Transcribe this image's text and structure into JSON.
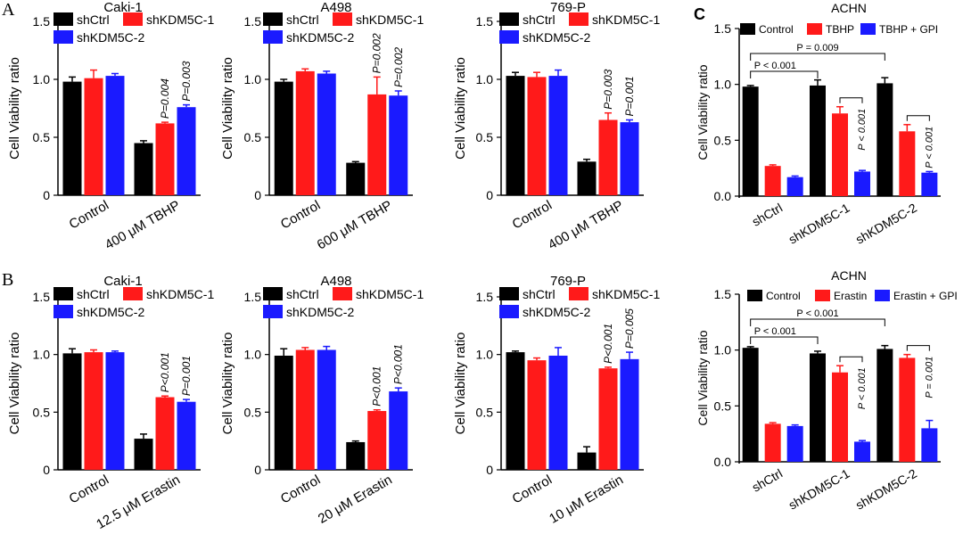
{
  "panel_labels": {
    "a": "A",
    "b": "B",
    "c": "C"
  },
  "colors": {
    "shCtrl": "#000000",
    "shKDM5C-1": "#ff1a1a",
    "shKDM5C-2": "#1a1aff"
  },
  "chart_data": [
    {
      "type": "bar",
      "title": "Caki-1",
      "ylabel": "Cell Viability ratio",
      "ylim": [
        0,
        1.5
      ],
      "yticks": [
        "0",
        "0.5",
        "1.0",
        "1.5"
      ],
      "categories": [
        "Control",
        "400 μM TBHP"
      ],
      "series": [
        {
          "name": "shCtrl",
          "values": [
            0.98,
            0.45
          ],
          "errors": [
            0.04,
            0.02
          ]
        },
        {
          "name": "shKDM5C-1",
          "values": [
            1.01,
            0.62
          ],
          "errors": [
            0.07,
            0.01
          ]
        },
        {
          "name": "shKDM5C-2",
          "values": [
            1.03,
            0.76
          ],
          "errors": [
            0.02,
            0.02
          ]
        }
      ],
      "pvalues": [
        {
          "text": "P=0.004",
          "category": 1,
          "series": 1
        },
        {
          "text": "P=0.003",
          "category": 1,
          "series": 2
        }
      ]
    },
    {
      "type": "bar",
      "title": "A498",
      "ylabel": "Cell Viability ratio",
      "ylim": [
        0,
        1.5
      ],
      "yticks": [
        "0",
        "0.5",
        "1.0",
        "1.5"
      ],
      "categories": [
        "Control",
        "600 μM TBHP"
      ],
      "series": [
        {
          "name": "shCtrl",
          "values": [
            0.98,
            0.28
          ],
          "errors": [
            0.02,
            0.01
          ]
        },
        {
          "name": "shKDM5C-1",
          "values": [
            1.07,
            0.87
          ],
          "errors": [
            0.02,
            0.15
          ]
        },
        {
          "name": "shKDM5C-2",
          "values": [
            1.05,
            0.86
          ],
          "errors": [
            0.02,
            0.04
          ]
        }
      ],
      "pvalues": [
        {
          "text": "P=0.002",
          "category": 1,
          "series": 1
        },
        {
          "text": "P=0.002",
          "category": 1,
          "series": 2
        }
      ]
    },
    {
      "type": "bar",
      "title": "769-P",
      "ylabel": "Cell Viability ratio",
      "ylim": [
        0,
        1.5
      ],
      "yticks": [
        "0",
        "0.5",
        "1.0",
        "1.5"
      ],
      "categories": [
        "Control",
        "400 μM TBHP"
      ],
      "series": [
        {
          "name": "shCtrl",
          "values": [
            1.03,
            0.29
          ],
          "errors": [
            0.03,
            0.02
          ]
        },
        {
          "name": "shKDM5C-1",
          "values": [
            1.02,
            0.65
          ],
          "errors": [
            0.04,
            0.06
          ]
        },
        {
          "name": "shKDM5C-2",
          "values": [
            1.03,
            0.63
          ],
          "errors": [
            0.05,
            0.02
          ]
        }
      ],
      "pvalues": [
        {
          "text": "P=0.003",
          "category": 1,
          "series": 1
        },
        {
          "text": "P=0.001",
          "category": 1,
          "series": 2
        }
      ]
    },
    {
      "type": "bar",
      "title": "Caki-1",
      "ylabel": "Cell Viability ratio",
      "ylim": [
        0,
        1.5
      ],
      "yticks": [
        "0",
        "0.5",
        "1.0",
        "1.5"
      ],
      "categories": [
        "Control",
        "12.5 μM Erastin"
      ],
      "series": [
        {
          "name": "shCtrl",
          "values": [
            1.01,
            0.27
          ],
          "errors": [
            0.04,
            0.04
          ]
        },
        {
          "name": "shKDM5C-1",
          "values": [
            1.02,
            0.63
          ],
          "errors": [
            0.02,
            0.01
          ]
        },
        {
          "name": "shKDM5C-2",
          "values": [
            1.02,
            0.59
          ],
          "errors": [
            0.01,
            0.02
          ]
        }
      ],
      "pvalues": [
        {
          "text": "P<0.001",
          "category": 1,
          "series": 1
        },
        {
          "text": "P=0.001",
          "category": 1,
          "series": 2
        }
      ]
    },
    {
      "type": "bar",
      "title": "A498",
      "ylabel": "Cell Viability ratio",
      "ylim": [
        0,
        1.5
      ],
      "yticks": [
        "0",
        "0.5",
        "1.0",
        "1.5"
      ],
      "categories": [
        "Control",
        "20 μM Erastin"
      ],
      "series": [
        {
          "name": "shCtrl",
          "values": [
            0.99,
            0.24
          ],
          "errors": [
            0.06,
            0.01
          ]
        },
        {
          "name": "shKDM5C-1",
          "values": [
            1.04,
            0.51
          ],
          "errors": [
            0.02,
            0.01
          ]
        },
        {
          "name": "shKDM5C-2",
          "values": [
            1.04,
            0.68
          ],
          "errors": [
            0.03,
            0.03
          ]
        }
      ],
      "pvalues": [
        {
          "text": "P<0.001",
          "category": 1,
          "series": 1
        },
        {
          "text": "P<0.001",
          "category": 1,
          "series": 2
        }
      ]
    },
    {
      "type": "bar",
      "title": "769-P",
      "ylabel": "Cell Viability ratio",
      "ylim": [
        0,
        1.5
      ],
      "yticks": [
        "0",
        "0.5",
        "1.0",
        "1.5"
      ],
      "categories": [
        "Control",
        "10 μM Erastin"
      ],
      "series": [
        {
          "name": "shCtrl",
          "values": [
            1.02,
            0.15
          ],
          "errors": [
            0.01,
            0.05
          ]
        },
        {
          "name": "shKDM5C-1",
          "values": [
            0.95,
            0.88
          ],
          "errors": [
            0.02,
            0.01
          ]
        },
        {
          "name": "shKDM5C-2",
          "values": [
            0.99,
            0.96
          ],
          "errors": [
            0.07,
            0.06
          ]
        }
      ],
      "pvalues": [
        {
          "text": "P<0.001",
          "category": 1,
          "series": 1
        },
        {
          "text": "P=0.005",
          "category": 1,
          "series": 2
        }
      ]
    },
    {
      "type": "bar",
      "title": "ACHN",
      "ylabel": "Cell Viability ratio",
      "ylim": [
        0,
        1.5
      ],
      "yticks": [
        "0.0",
        "0.5",
        "1.0",
        "1.5"
      ],
      "categories": [
        "shCtrl",
        "shKDM5C-1",
        "shKDM5C-2"
      ],
      "series": [
        {
          "name": "Control",
          "values": [
            0.98,
            0.99,
            1.01
          ],
          "errors": [
            0.01,
            0.05,
            0.05
          ]
        },
        {
          "name": "TBHP",
          "values": [
            0.27,
            0.74,
            0.58
          ],
          "errors": [
            0.01,
            0.06,
            0.06
          ]
        },
        {
          "name": "TBHP + GPI",
          "values": [
            0.17,
            0.22,
            0.21
          ],
          "errors": [
            0.01,
            0.01,
            0.01
          ]
        }
      ],
      "comparisons": [
        {
          "text": "P = 0.009",
          "from": 0,
          "to": 2
        },
        {
          "text": "P < 0.001",
          "from": 0,
          "to": 1
        },
        {
          "text": "P < 0.001",
          "within": 1
        },
        {
          "text": "P < 0.001",
          "within": 2
        }
      ]
    },
    {
      "type": "bar",
      "title": "ACHN",
      "ylabel": "Cell Viability ratio",
      "ylim": [
        0,
        1.5
      ],
      "yticks": [
        "0.0",
        "0.5",
        "1.0",
        "1.5"
      ],
      "categories": [
        "shCtrl",
        "shKDM5C-1",
        "shKDM5C-2"
      ],
      "series": [
        {
          "name": "Control",
          "values": [
            1.02,
            0.97,
            1.01
          ],
          "errors": [
            0.01,
            0.02,
            0.03
          ]
        },
        {
          "name": "Erastin",
          "values": [
            0.34,
            0.8,
            0.93
          ],
          "errors": [
            0.01,
            0.06,
            0.03
          ]
        },
        {
          "name": "Erastin + GPI",
          "values": [
            0.32,
            0.18,
            0.3
          ],
          "errors": [
            0.01,
            0.01,
            0.07
          ]
        }
      ],
      "comparisons": [
        {
          "text": "P < 0.001",
          "from": 0,
          "to": 2
        },
        {
          "text": "P < 0.001",
          "from": 0,
          "to": 1
        },
        {
          "text": "P < 0.001",
          "within": 1
        },
        {
          "text": "P = 0.001",
          "within": 2
        }
      ]
    }
  ]
}
